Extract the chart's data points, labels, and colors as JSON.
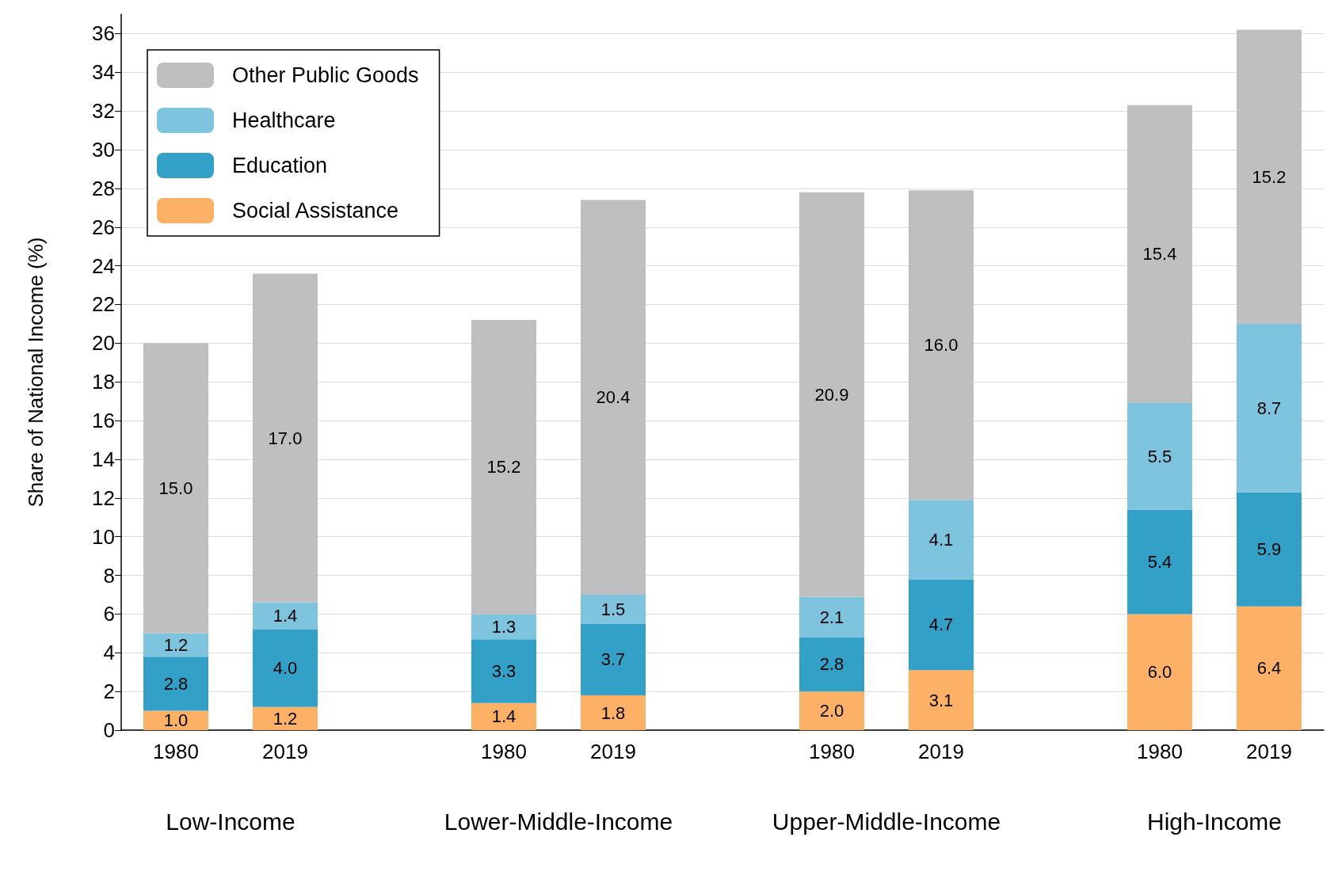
{
  "chart_data": {
    "type": "bar",
    "stacked": true,
    "ylabel": "Share of National Income (%)",
    "categories": [
      "1980",
      "2019",
      null,
      "1980",
      "2019",
      null,
      "1980",
      "2019",
      null,
      "1980",
      "2019"
    ],
    "series": [
      {
        "name": "Social Assistance",
        "color": "#fdb166",
        "values": [
          1.0,
          1.2,
          null,
          1.4,
          1.8,
          null,
          2.0,
          3.1,
          null,
          6.0,
          6.4
        ],
        "value_labels": [
          "1.0",
          "1.2",
          null,
          "1.4",
          "1.8",
          null,
          "2.0",
          "3.1",
          null,
          "6.0",
          "6.4"
        ]
      },
      {
        "name": "Education",
        "color": "#33a0c8",
        "values": [
          2.8,
          4.0,
          null,
          3.3,
          3.7,
          null,
          2.8,
          4.7,
          null,
          5.4,
          5.9
        ],
        "value_labels": [
          "2.8",
          "4.0",
          null,
          "3.3",
          "3.7",
          null,
          "2.8",
          "4.7",
          null,
          "5.4",
          "5.9"
        ]
      },
      {
        "name": "Healthcare",
        "color": "#7fc4de",
        "values": [
          1.2,
          1.4,
          null,
          1.3,
          1.5,
          null,
          2.1,
          4.1,
          null,
          5.5,
          8.7
        ],
        "value_labels": [
          "1.2",
          "1.4",
          null,
          "1.3",
          "1.5",
          null,
          "2.1",
          "4.1",
          null,
          "5.5",
          "8.7"
        ]
      },
      {
        "name": "Other Public Goods",
        "color": "#bfbfbf",
        "values": [
          15.0,
          17.0,
          null,
          15.2,
          20.4,
          null,
          20.9,
          16.0,
          null,
          15.4,
          15.2
        ],
        "value_labels": [
          "15.0",
          "17.0",
          null,
          "15.2",
          "20.4",
          null,
          "20.9",
          "16.0",
          null,
          "15.4",
          "15.2"
        ]
      }
    ],
    "ylim": [
      0,
      37
    ],
    "yticks": [
      0,
      2,
      4,
      6,
      8,
      10,
      12,
      14,
      16,
      18,
      20,
      22,
      24,
      26,
      28,
      30,
      32,
      34,
      36
    ],
    "grid": "y",
    "legend": "top left",
    "annotations": [
      "Low-Income",
      "Lower-Middle-Income",
      "Upper-Middle-Income",
      "High-Income"
    ]
  }
}
